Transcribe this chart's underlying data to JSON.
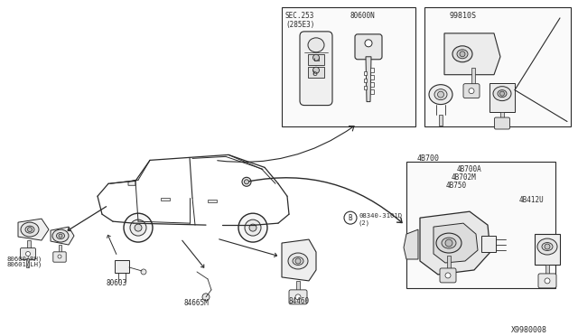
{
  "bg_color": "#ffffff",
  "line_color": "#2a2a2a",
  "part_numbers": {
    "smart_key_label": "80600N",
    "sec_ref": "SEC.253\n(285E3)",
    "lock_set": "99810S",
    "door_lock_rh": "80600(RH)",
    "door_lock_lh": "80601(LH)",
    "cylinder": "80603",
    "trunk_latch": "84665M",
    "trunk_lock": "84460",
    "steering_lock": "4B700",
    "steering_lock_a": "4B700A",
    "steering_702": "4B702M",
    "steering_750": "4B750",
    "steering_412": "4B412U",
    "bolt": "08340-3101D\n(2)",
    "diagram_id": "X9980008"
  },
  "layout": {
    "fig_w": 6.4,
    "fig_h": 3.72,
    "dpi": 100
  }
}
